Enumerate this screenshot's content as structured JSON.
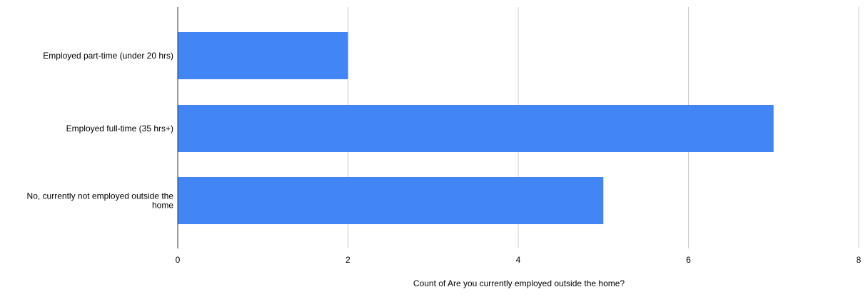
{
  "chart_data": {
    "type": "bar",
    "orientation": "horizontal",
    "categories": [
      "Employed part-time (under 20 hrs)",
      "Employed full-time (35 hrs+)",
      "No, currently not employed outside the home"
    ],
    "values": [
      2,
      7,
      5
    ],
    "title": "",
    "xlabel": "Count of Are you currently employed outside the home?",
    "ylabel": "",
    "xlim": [
      0,
      8
    ],
    "x_ticks": [
      "0",
      "2",
      "4",
      "6",
      "8"
    ],
    "grid": "vertical",
    "legend": "none",
    "bar_color": "#4285f4",
    "grid_color": "#cccccc",
    "axis_color": "#333333",
    "text_color": "#000000"
  }
}
